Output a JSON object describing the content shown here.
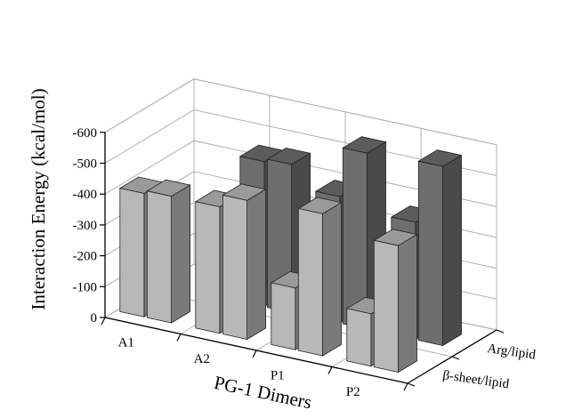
{
  "chart_data": {
    "type": "bar",
    "style": "3d-grouped",
    "xlabel": "PG-1 Dimers",
    "ylabel": "Interaction Energy (kcal/mol)",
    "zlabel": "",
    "categories": [
      "A1",
      "A2",
      "P1",
      "P2"
    ],
    "depth_categories": [
      "β-sheet/lipid",
      "Arg/lipid"
    ],
    "ylim": [
      0,
      -600
    ],
    "yticks": [
      0,
      -100,
      -200,
      -300,
      -400,
      -500,
      -600
    ],
    "ytick_labels": [
      "0",
      "-100",
      "-200",
      "-300",
      "-400",
      "-500",
      "-600"
    ],
    "grid": true,
    "series": [
      {
        "name": "β-sheet/lipid",
        "bars": [
          {
            "category": "A1",
            "values": [
              -400,
              -410
            ]
          },
          {
            "category": "A2",
            "values": [
              -410,
              -450
            ]
          },
          {
            "category": "P1",
            "values": [
              -200,
              -460
            ]
          },
          {
            "category": "P2",
            "values": [
              -170,
              -410
            ]
          }
        ]
      },
      {
        "name": "Arg/lipid",
        "bars": [
          {
            "category": "A1",
            "values": [
              null,
              null
            ]
          },
          {
            "category": "A2",
            "values": [
              -470,
              -480
            ]
          },
          {
            "category": "P1",
            "values": [
              -410,
              -570
            ]
          },
          {
            "category": "P2",
            "values": [
              -380,
              -580
            ]
          }
        ]
      }
    ],
    "extra_bars": [
      {
        "category": "P1",
        "row": "Arg/lipid",
        "value": -300
      },
      {
        "category": "P2",
        "row": "Arg/lipid",
        "value": -240
      }
    ],
    "colors": {
      "front_face": "#b8b8b8",
      "front_side": "#7a7a7a",
      "front_top": "#9a9a9a",
      "back_face": "#6e6e6e",
      "back_side": "#4a4a4a",
      "back_top": "#5c5c5c",
      "grid": "#b0b0b0",
      "axis": "#000000"
    }
  }
}
